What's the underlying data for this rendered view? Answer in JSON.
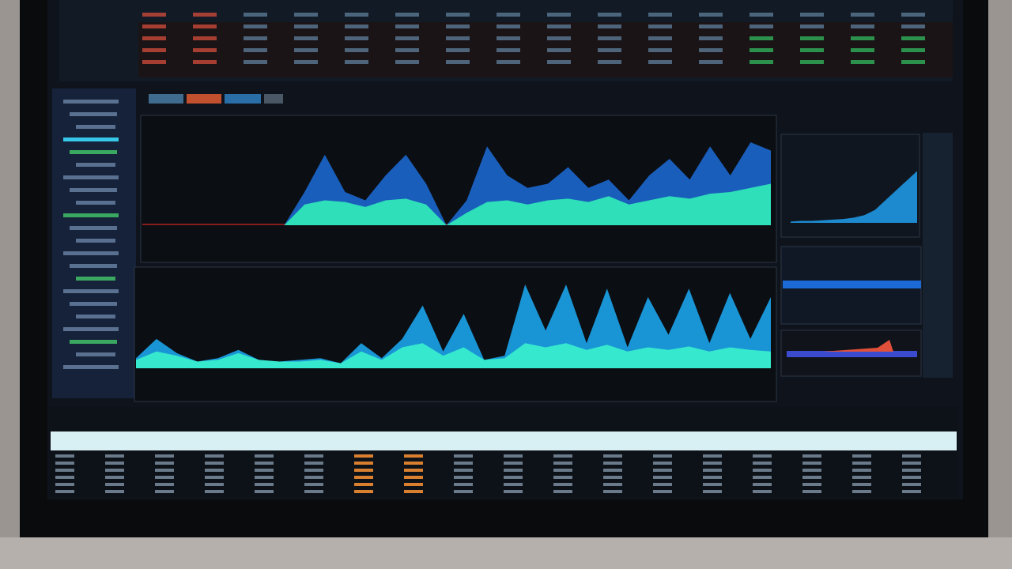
{
  "chart_data": [
    {
      "type": "area",
      "ylim": [
        0,
        100
      ],
      "series": [
        {
          "color": "#1b63c4",
          "values": [
            0,
            0,
            0,
            0,
            0,
            0,
            0,
            0,
            40,
            85,
            40,
            30,
            60,
            85,
            50,
            0,
            30,
            95,
            60,
            45,
            50,
            70,
            45,
            55,
            30,
            60,
            80,
            55,
            95,
            60,
            100,
            90
          ]
        },
        {
          "color": "#2fe6b8",
          "values": [
            0,
            0,
            0,
            0,
            0,
            0,
            0,
            0,
            25,
            30,
            28,
            22,
            30,
            32,
            25,
            0,
            15,
            28,
            30,
            25,
            30,
            32,
            28,
            35,
            25,
            30,
            35,
            32,
            38,
            40,
            45,
            50
          ]
        }
      ]
    },
    {
      "type": "area",
      "ylim": [
        0,
        100
      ],
      "series": [
        {
          "color": "#1a9de0",
          "values": [
            12,
            35,
            18,
            8,
            12,
            22,
            10,
            8,
            10,
            12,
            6,
            30,
            12,
            35,
            75,
            20,
            65,
            10,
            15,
            100,
            45,
            100,
            30,
            95,
            25,
            85,
            40,
            95,
            30,
            90,
            35,
            85
          ]
        },
        {
          "color": "#38eccc",
          "values": [
            10,
            20,
            15,
            8,
            10,
            18,
            10,
            8,
            8,
            10,
            6,
            20,
            10,
            25,
            30,
            15,
            25,
            10,
            12,
            30,
            25,
            30,
            22,
            28,
            20,
            25,
            22,
            26,
            20,
            25,
            22,
            20
          ]
        }
      ]
    },
    {
      "type": "area",
      "ylim": [
        0,
        100
      ],
      "series": [
        {
          "color": "#1f8fd8",
          "values": [
            2,
            3,
            3,
            4,
            5,
            6,
            8,
            12,
            20,
            35,
            50,
            65,
            80
          ]
        }
      ]
    }
  ]
}
